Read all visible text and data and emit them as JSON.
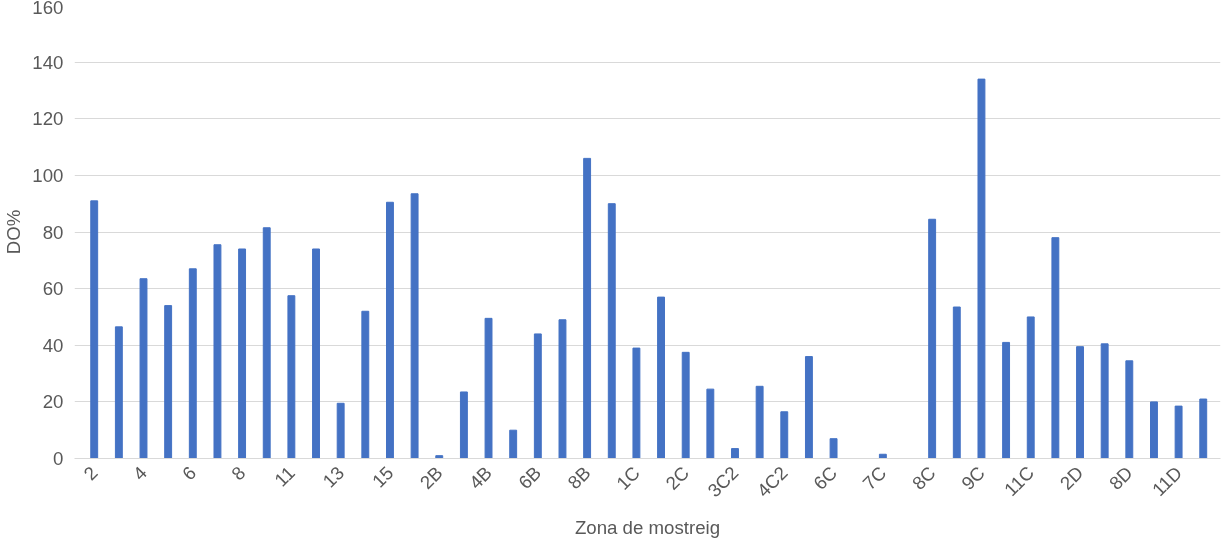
{
  "chart_data": {
    "type": "bar",
    "xlabel": "Zona de mostreig",
    "ylabel": "DO%",
    "categories": [
      "2",
      null,
      "4",
      null,
      "6",
      null,
      "8",
      null,
      "11",
      null,
      "13",
      null,
      "15",
      null,
      "2B",
      null,
      "4B",
      null,
      "6B",
      null,
      "8B",
      null,
      "1C",
      null,
      "2C",
      null,
      "3C2",
      null,
      "4C2",
      null,
      "6C",
      null,
      "7C",
      null,
      "8C",
      null,
      "9C",
      null,
      "11C",
      null,
      "2D",
      null,
      "8D",
      null,
      "11D",
      null
    ],
    "values": [
      91,
      46.5,
      63.5,
      54,
      67,
      75.5,
      74,
      81.5,
      57.5,
      74,
      19.5,
      52,
      90.5,
      93.5,
      1,
      23.5,
      49.5,
      10,
      44,
      49,
      106,
      90,
      39,
      57,
      37.5,
      24.5,
      3.5,
      25.5,
      16.5,
      36,
      7,
      0,
      1.5,
      0,
      84.5,
      53.5,
      134,
      41,
      50,
      78,
      39.5,
      40.5,
      34.5,
      20,
      18.5,
      21
    ],
    "color": "#4472c4",
    "ylim": [
      0,
      160
    ],
    "yticks": [
      0,
      20,
      40,
      60,
      80,
      100,
      120,
      140,
      160
    ],
    "grid": "y"
  }
}
